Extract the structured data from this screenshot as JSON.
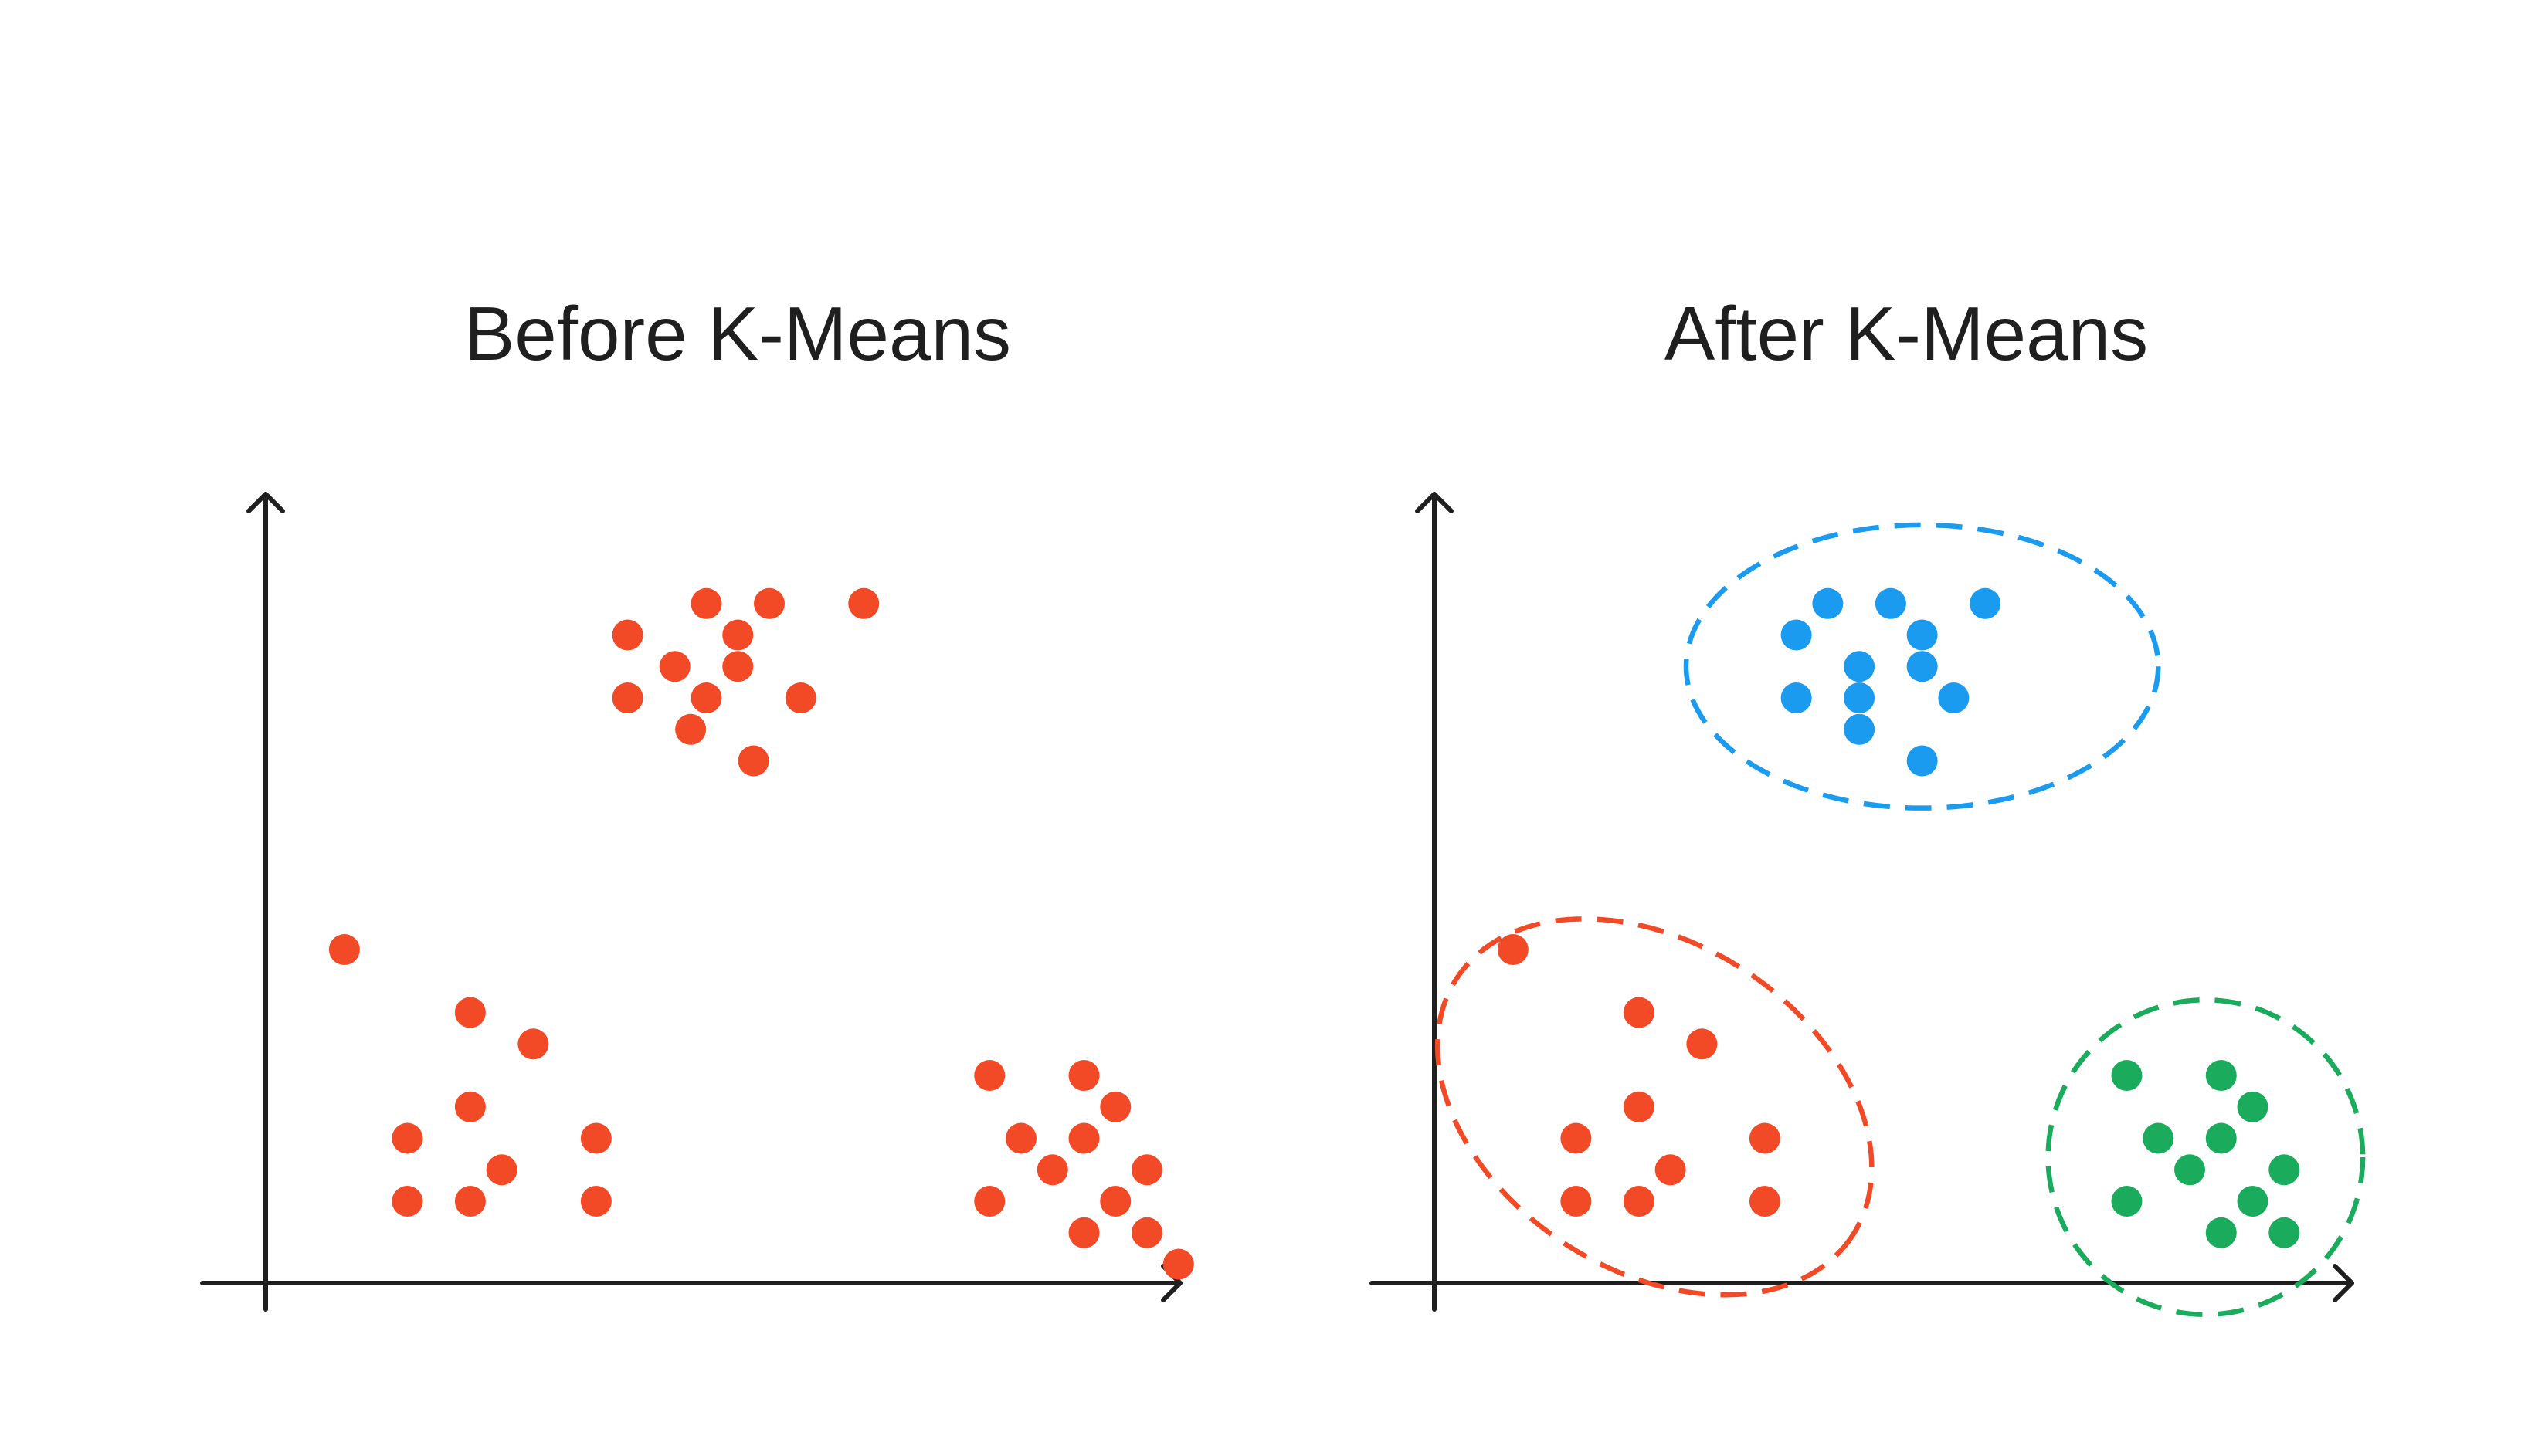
{
  "chart_data": [
    {
      "type": "scatter",
      "title": "Before K-Means",
      "xlabel": "",
      "ylabel": "",
      "grid": false,
      "legend": "none",
      "xlim": [
        0,
        14.5
      ],
      "ylim": [
        0,
        12.5
      ],
      "series": [
        {
          "color": "#F24A26",
          "points": [
            [
              1.25,
              5.3
            ],
            [
              3.25,
              4.3
            ],
            [
              4.25,
              3.8
            ],
            [
              3.25,
              2.8
            ],
            [
              2.25,
              2.3
            ],
            [
              5.25,
              2.3
            ],
            [
              3.75,
              1.8
            ],
            [
              2.25,
              1.3
            ],
            [
              3.25,
              1.3
            ],
            [
              5.25,
              1.3
            ],
            [
              7.0,
              10.8
            ],
            [
              8.0,
              10.8
            ],
            [
              9.5,
              10.8
            ],
            [
              5.75,
              10.3
            ],
            [
              7.5,
              10.3
            ],
            [
              6.5,
              9.8
            ],
            [
              7.5,
              9.8
            ],
            [
              5.75,
              9.3
            ],
            [
              7.0,
              9.3
            ],
            [
              8.5,
              9.3
            ],
            [
              6.75,
              8.8
            ],
            [
              7.75,
              8.3
            ],
            [
              11.5,
              3.3
            ],
            [
              13.0,
              3.3
            ],
            [
              13.5,
              2.8
            ],
            [
              12.0,
              2.3
            ],
            [
              13.0,
              2.3
            ],
            [
              12.5,
              1.8
            ],
            [
              14.0,
              1.8
            ],
            [
              11.5,
              1.3
            ],
            [
              13.5,
              1.3
            ],
            [
              13.0,
              0.8
            ],
            [
              14.0,
              0.8
            ],
            [
              14.5,
              0.3
            ]
          ]
        }
      ]
    },
    {
      "type": "scatter",
      "title": "After K-Means",
      "xlabel": "",
      "ylabel": "",
      "grid": false,
      "legend": "none",
      "xlim": [
        0,
        14.5
      ],
      "ylim": [
        0,
        12.5
      ],
      "series": [
        {
          "color": "#F24A26",
          "points": [
            [
              1.25,
              5.3
            ],
            [
              3.25,
              4.3
            ],
            [
              4.25,
              3.8
            ],
            [
              3.25,
              2.8
            ],
            [
              2.25,
              2.3
            ],
            [
              5.25,
              2.3
            ],
            [
              3.75,
              1.8
            ],
            [
              2.25,
              1.3
            ],
            [
              3.25,
              1.3
            ],
            [
              5.25,
              1.3
            ]
          ],
          "cluster_outline": {
            "center": [
              3.5,
              2.8
            ],
            "rx": 3.75,
            "ry": 2.6,
            "rotation_deg": 33
          }
        },
        {
          "color": "#1A9BF0",
          "points": [
            [
              6.25,
              10.8
            ],
            [
              7.25,
              10.8
            ],
            [
              8.75,
              10.8
            ],
            [
              5.75,
              10.3
            ],
            [
              7.75,
              10.3
            ],
            [
              6.75,
              9.8
            ],
            [
              7.75,
              9.8
            ],
            [
              5.75,
              9.3
            ],
            [
              6.75,
              9.3
            ],
            [
              8.25,
              9.3
            ],
            [
              6.75,
              8.8
            ],
            [
              7.75,
              8.3
            ]
          ],
          "cluster_outline": {
            "center": [
              7.75,
              9.8
            ],
            "rx": 3.75,
            "ry": 2.25,
            "rotation_deg": 0
          }
        },
        {
          "color": "#1AAB5C",
          "points": [
            [
              11.0,
              3.3
            ],
            [
              12.5,
              3.3
            ],
            [
              13.0,
              2.8
            ],
            [
              11.5,
              2.3
            ],
            [
              12.5,
              2.3
            ],
            [
              12.0,
              1.8
            ],
            [
              13.5,
              1.8
            ],
            [
              11.0,
              1.3
            ],
            [
              13.0,
              1.3
            ],
            [
              12.5,
              0.8
            ],
            [
              13.5,
              0.8
            ]
          ],
          "cluster_outline": {
            "center": [
              12.25,
              2.0
            ],
            "rx": 2.5,
            "ry": 2.5,
            "rotation_deg": 0
          }
        }
      ]
    }
  ]
}
